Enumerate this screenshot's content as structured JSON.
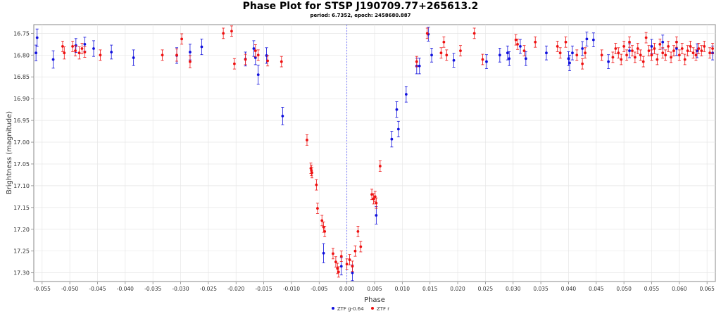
{
  "chart_data": {
    "type": "scatter",
    "title": "Phase Plot for STSP J190709.77+265613.2",
    "subtitle": "period: 6.7352, epoch: 2458680.887",
    "xlabel": "Phase",
    "ylabel": "Brightness (magnitude)",
    "xlim": [
      -0.0565,
      0.0665
    ],
    "ylim": [
      16.73,
      17.32
    ],
    "y_inverted": true,
    "grid": true,
    "legend_position": "bottom-center",
    "reference_line_x": 0.0,
    "x_ticks": [
      "-0.055",
      "-0.050",
      "-0.045",
      "-0.040",
      "-0.035",
      "-0.030",
      "-0.025",
      "-0.020",
      "-0.015",
      "-0.010",
      "-0.005",
      "0.000",
      "0.005",
      "0.010",
      "0.015",
      "0.020",
      "0.025",
      "0.030",
      "0.035",
      "0.040",
      "0.045",
      "0.050",
      "0.055",
      "0.060",
      "0.065"
    ],
    "y_ticks": [
      "16.75",
      "16.80",
      "16.85",
      "16.90",
      "16.95",
      "17.00",
      "17.05",
      "17.10",
      "17.15",
      "17.20",
      "17.25",
      "17.30"
    ],
    "series": [
      {
        "name": "ZTF g-0.64",
        "color": "#1010dd",
        "points": [
          {
            "x": -0.0561,
            "y": 16.795,
            "e": 0.018
          },
          {
            "x": -0.0559,
            "y": 16.76,
            "e": 0.02
          },
          {
            "x": -0.053,
            "y": 16.81,
            "e": 0.02
          },
          {
            "x": -0.0489,
            "y": 16.778,
            "e": 0.016
          },
          {
            "x": -0.0473,
            "y": 16.775,
            "e": 0.016
          },
          {
            "x": -0.0457,
            "y": 16.785,
            "e": 0.018
          },
          {
            "x": -0.0425,
            "y": 16.793,
            "e": 0.016
          },
          {
            "x": -0.0385,
            "y": 16.806,
            "e": 0.018
          },
          {
            "x": -0.0307,
            "y": 16.801,
            "e": 0.018
          },
          {
            "x": -0.0283,
            "y": 16.793,
            "e": 0.018
          },
          {
            "x": -0.0262,
            "y": 16.781,
            "e": 0.018
          },
          {
            "x": -0.0183,
            "y": 16.809,
            "e": 0.016
          },
          {
            "x": -0.0168,
            "y": 16.785,
            "e": 0.018
          },
          {
            "x": -0.0165,
            "y": 16.806,
            "e": 0.016
          },
          {
            "x": -0.016,
            "y": 16.845,
            "e": 0.022
          },
          {
            "x": -0.0145,
            "y": 16.801,
            "e": 0.018
          },
          {
            "x": -0.0116,
            "y": 16.94,
            "e": 0.02
          },
          {
            "x": -0.0042,
            "y": 17.255,
            "e": 0.022
          },
          {
            "x": -0.001,
            "y": 17.285,
            "e": 0.02
          },
          {
            "x": 0.001,
            "y": 17.3,
            "e": 0.018
          },
          {
            "x": 0.0053,
            "y": 17.168,
            "e": 0.02
          },
          {
            "x": 0.0081,
            "y": 16.993,
            "e": 0.018
          },
          {
            "x": 0.009,
            "y": 16.925,
            "e": 0.018
          },
          {
            "x": 0.0093,
            "y": 16.97,
            "e": 0.018
          },
          {
            "x": 0.0107,
            "y": 16.89,
            "e": 0.018
          },
          {
            "x": 0.0126,
            "y": 16.825,
            "e": 0.018
          },
          {
            "x": 0.0131,
            "y": 16.825,
            "e": 0.018
          },
          {
            "x": 0.0147,
            "y": 16.752,
            "e": 0.016
          },
          {
            "x": 0.0153,
            "y": 16.8,
            "e": 0.016
          },
          {
            "x": 0.0193,
            "y": 16.812,
            "e": 0.016
          },
          {
            "x": 0.0252,
            "y": 16.815,
            "e": 0.016
          },
          {
            "x": 0.0276,
            "y": 16.8,
            "e": 0.016
          },
          {
            "x": 0.029,
            "y": 16.795,
            "e": 0.016
          },
          {
            "x": 0.0293,
            "y": 16.808,
            "e": 0.016
          },
          {
            "x": 0.0313,
            "y": 16.78,
            "e": 0.016
          },
          {
            "x": 0.0323,
            "y": 16.808,
            "e": 0.016
          },
          {
            "x": 0.036,
            "y": 16.795,
            "e": 0.016
          },
          {
            "x": 0.04,
            "y": 16.808,
            "e": 0.016
          },
          {
            "x": 0.0402,
            "y": 16.818,
            "e": 0.018
          },
          {
            "x": 0.0407,
            "y": 16.795,
            "e": 0.016
          },
          {
            "x": 0.0425,
            "y": 16.785,
            "e": 0.016
          },
          {
            "x": 0.0433,
            "y": 16.763,
            "e": 0.016
          },
          {
            "x": 0.0445,
            "y": 16.765,
            "e": 0.016
          },
          {
            "x": 0.0472,
            "y": 16.815,
            "e": 0.016
          },
          {
            "x": 0.051,
            "y": 16.79,
            "e": 0.016
          },
          {
            "x": 0.055,
            "y": 16.78,
            "e": 0.016
          },
          {
            "x": 0.057,
            "y": 16.77,
            "e": 0.016
          },
          {
            "x": 0.0595,
            "y": 16.785,
            "e": 0.016
          },
          {
            "x": 0.0632,
            "y": 16.79,
            "e": 0.016
          },
          {
            "x": 0.066,
            "y": 16.795,
            "e": 0.016
          }
        ]
      },
      {
        "name": "ZTF r",
        "color": "#ee1111",
        "points": [
          {
            "x": -0.0513,
            "y": 16.78,
            "e": 0.012
          },
          {
            "x": -0.051,
            "y": 16.795,
            "e": 0.014
          },
          {
            "x": -0.0495,
            "y": 16.78,
            "e": 0.012
          },
          {
            "x": -0.049,
            "y": 16.79,
            "e": 0.012
          },
          {
            "x": -0.0483,
            "y": 16.795,
            "e": 0.014
          },
          {
            "x": -0.0478,
            "y": 16.785,
            "e": 0.012
          },
          {
            "x": -0.0473,
            "y": 16.793,
            "e": 0.012
          },
          {
            "x": -0.0445,
            "y": 16.8,
            "e": 0.012
          },
          {
            "x": -0.0333,
            "y": 16.8,
            "e": 0.012
          },
          {
            "x": -0.0307,
            "y": 16.8,
            "e": 0.014
          },
          {
            "x": -0.0298,
            "y": 16.763,
            "e": 0.012
          },
          {
            "x": -0.0283,
            "y": 16.815,
            "e": 0.014
          },
          {
            "x": -0.0223,
            "y": 16.75,
            "e": 0.012
          },
          {
            "x": -0.0208,
            "y": 16.745,
            "e": 0.012
          },
          {
            "x": -0.0203,
            "y": 16.82,
            "e": 0.012
          },
          {
            "x": -0.0183,
            "y": 16.81,
            "e": 0.012
          },
          {
            "x": -0.0165,
            "y": 16.79,
            "e": 0.014
          },
          {
            "x": -0.016,
            "y": 16.8,
            "e": 0.012
          },
          {
            "x": -0.0143,
            "y": 16.813,
            "e": 0.012
          },
          {
            "x": -0.0118,
            "y": 16.815,
            "e": 0.012
          },
          {
            "x": -0.0072,
            "y": 16.995,
            "e": 0.012
          },
          {
            "x": -0.0065,
            "y": 17.06,
            "e": 0.012
          },
          {
            "x": -0.0064,
            "y": 17.065,
            "e": 0.012
          },
          {
            "x": -0.0063,
            "y": 17.07,
            "e": 0.012
          },
          {
            "x": -0.0055,
            "y": 17.098,
            "e": 0.012
          },
          {
            "x": -0.0053,
            "y": 17.152,
            "e": 0.012
          },
          {
            "x": -0.0045,
            "y": 17.18,
            "e": 0.012
          },
          {
            "x": -0.0042,
            "y": 17.195,
            "e": 0.012
          },
          {
            "x": -0.004,
            "y": 17.205,
            "e": 0.012
          },
          {
            "x": -0.0025,
            "y": 17.256,
            "e": 0.012
          },
          {
            "x": -0.002,
            "y": 17.275,
            "e": 0.012
          },
          {
            "x": -0.0017,
            "y": 17.29,
            "e": 0.012
          },
          {
            "x": -0.0015,
            "y": 17.298,
            "e": 0.012
          },
          {
            "x": -0.001,
            "y": 17.262,
            "e": 0.012
          },
          {
            "x": 0.0,
            "y": 17.28,
            "e": 0.012
          },
          {
            "x": 0.0005,
            "y": 17.27,
            "e": 0.012
          },
          {
            "x": 0.001,
            "y": 17.285,
            "e": 0.012
          },
          {
            "x": 0.0015,
            "y": 17.25,
            "e": 0.012
          },
          {
            "x": 0.002,
            "y": 17.205,
            "e": 0.012
          },
          {
            "x": 0.0025,
            "y": 17.24,
            "e": 0.012
          },
          {
            "x": 0.0045,
            "y": 17.12,
            "e": 0.012
          },
          {
            "x": 0.0048,
            "y": 17.13,
            "e": 0.012
          },
          {
            "x": 0.0051,
            "y": 17.125,
            "e": 0.012
          },
          {
            "x": 0.0053,
            "y": 17.14,
            "e": 0.012
          },
          {
            "x": 0.006,
            "y": 17.055,
            "e": 0.012
          },
          {
            "x": 0.0126,
            "y": 16.815,
            "e": 0.012
          },
          {
            "x": 0.0145,
            "y": 16.75,
            "e": 0.012
          },
          {
            "x": 0.017,
            "y": 16.795,
            "e": 0.012
          },
          {
            "x": 0.0175,
            "y": 16.77,
            "e": 0.012
          },
          {
            "x": 0.018,
            "y": 16.8,
            "e": 0.012
          },
          {
            "x": 0.0205,
            "y": 16.79,
            "e": 0.012
          },
          {
            "x": 0.023,
            "y": 16.75,
            "e": 0.012
          },
          {
            "x": 0.0245,
            "y": 16.81,
            "e": 0.012
          },
          {
            "x": 0.0305,
            "y": 16.765,
            "e": 0.012
          },
          {
            "x": 0.0308,
            "y": 16.775,
            "e": 0.012
          },
          {
            "x": 0.032,
            "y": 16.79,
            "e": 0.012
          },
          {
            "x": 0.034,
            "y": 16.77,
            "e": 0.012
          },
          {
            "x": 0.038,
            "y": 16.78,
            "e": 0.012
          },
          {
            "x": 0.0385,
            "y": 16.795,
            "e": 0.012
          },
          {
            "x": 0.0395,
            "y": 16.77,
            "e": 0.012
          },
          {
            "x": 0.0415,
            "y": 16.8,
            "e": 0.012
          },
          {
            "x": 0.0425,
            "y": 16.82,
            "e": 0.012
          },
          {
            "x": 0.043,
            "y": 16.795,
            "e": 0.012
          },
          {
            "x": 0.046,
            "y": 16.8,
            "e": 0.012
          },
          {
            "x": 0.048,
            "y": 16.805,
            "e": 0.012
          },
          {
            "x": 0.0485,
            "y": 16.785,
            "e": 0.012
          },
          {
            "x": 0.049,
            "y": 16.795,
            "e": 0.012
          },
          {
            "x": 0.0495,
            "y": 16.81,
            "e": 0.012
          },
          {
            "x": 0.05,
            "y": 16.78,
            "e": 0.012
          },
          {
            "x": 0.0505,
            "y": 16.8,
            "e": 0.012
          },
          {
            "x": 0.051,
            "y": 16.77,
            "e": 0.012
          },
          {
            "x": 0.0515,
            "y": 16.79,
            "e": 0.012
          },
          {
            "x": 0.052,
            "y": 16.805,
            "e": 0.012
          },
          {
            "x": 0.0525,
            "y": 16.785,
            "e": 0.012
          },
          {
            "x": 0.053,
            "y": 16.8,
            "e": 0.012
          },
          {
            "x": 0.0535,
            "y": 16.815,
            "e": 0.012
          },
          {
            "x": 0.054,
            "y": 16.76,
            "e": 0.012
          },
          {
            "x": 0.0545,
            "y": 16.79,
            "e": 0.012
          },
          {
            "x": 0.055,
            "y": 16.8,
            "e": 0.012
          },
          {
            "x": 0.0555,
            "y": 16.785,
            "e": 0.012
          },
          {
            "x": 0.056,
            "y": 16.81,
            "e": 0.012
          },
          {
            "x": 0.0565,
            "y": 16.775,
            "e": 0.012
          },
          {
            "x": 0.057,
            "y": 16.795,
            "e": 0.012
          },
          {
            "x": 0.0575,
            "y": 16.8,
            "e": 0.012
          },
          {
            "x": 0.058,
            "y": 16.78,
            "e": 0.012
          },
          {
            "x": 0.0585,
            "y": 16.805,
            "e": 0.012
          },
          {
            "x": 0.059,
            "y": 16.79,
            "e": 0.012
          },
          {
            "x": 0.0595,
            "y": 16.77,
            "e": 0.012
          },
          {
            "x": 0.06,
            "y": 16.8,
            "e": 0.012
          },
          {
            "x": 0.0605,
            "y": 16.785,
            "e": 0.012
          },
          {
            "x": 0.061,
            "y": 16.81,
            "e": 0.012
          },
          {
            "x": 0.0615,
            "y": 16.79,
            "e": 0.012
          },
          {
            "x": 0.062,
            "y": 16.78,
            "e": 0.012
          },
          {
            "x": 0.0625,
            "y": 16.795,
            "e": 0.012
          },
          {
            "x": 0.063,
            "y": 16.8,
            "e": 0.012
          },
          {
            "x": 0.0635,
            "y": 16.785,
            "e": 0.012
          },
          {
            "x": 0.064,
            "y": 16.79,
            "e": 0.012
          },
          {
            "x": 0.0645,
            "y": 16.78,
            "e": 0.012
          },
          {
            "x": 0.0655,
            "y": 16.795,
            "e": 0.012
          },
          {
            "x": 0.066,
            "y": 16.785,
            "e": 0.012
          }
        ]
      }
    ]
  }
}
